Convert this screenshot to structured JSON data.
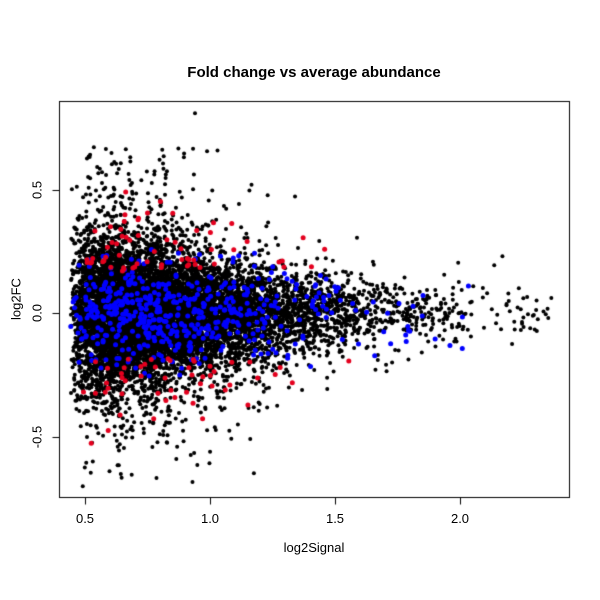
{
  "figure": {
    "background": "#ffffff",
    "box_color": "#000000",
    "text_color": "#000000"
  },
  "chart_data": {
    "type": "scatter",
    "title": "Fold change vs average abundance",
    "xlabel": "log2Signal",
    "ylabel": "log2FC",
    "xlim": [
      0.396,
      2.436
    ],
    "ylim": [
      -0.743,
      0.86
    ],
    "x_ticks": [
      0.5,
      1.0,
      1.5,
      2.0
    ],
    "x_tick_labels": [
      "0.5",
      "1.0",
      "1.5",
      "2.0"
    ],
    "y_ticks": [
      -0.5,
      0.0,
      0.5
    ],
    "y_tick_labels": [
      "-0.5",
      "0.0",
      "0.5"
    ],
    "grid": false,
    "legend": null,
    "seed": 7,
    "series": [
      {
        "name": "non-significant-probes",
        "color": "#000000",
        "n": 9500,
        "radius_px": 2.0,
        "x_dist": {
          "offset": 0.44,
          "scale": 0.27,
          "shape2": 0.6,
          "max": 2.37
        },
        "y_dist": {
          "type": "fan",
          "x0": 0.44,
          "sd0": 0.15,
          "decay": 0.9,
          "sd_min": 0.03,
          "tail_frac": 0.13,
          "tail_mult": 2.1,
          "tail2_frac": 0.018,
          "tail2_mult": 3.1,
          "max_abs": 0.7
        }
      },
      {
        "name": "significant-blue-probes",
        "color": "#0000ff",
        "n": 520,
        "radius_px": 2.5,
        "x_dist": {
          "offset": 0.44,
          "scale": 0.27,
          "shape2": 0.7,
          "max": 2.05
        },
        "y_dist": {
          "type": "normal",
          "sd": 0.105,
          "max_abs": 0.27
        }
      },
      {
        "name": "significant-red-probes",
        "color": "#e4001e",
        "n": 115,
        "radius_px": 2.5,
        "x_dist": {
          "offset": 0.47,
          "scale": 0.24,
          "shape2": 0.8,
          "max": 1.72
        },
        "y_dist": {
          "type": "shifted",
          "base": 0.17,
          "sd": 0.13,
          "max_abs": 0.58,
          "pos_frac": 0.54
        }
      }
    ],
    "highlight_points": [
      {
        "x": 0.94,
        "y": 0.81,
        "color": "#000000",
        "radius_px": 2.0
      },
      {
        "x": 1.03,
        "y": 0.66,
        "color": "#000000",
        "radius_px": 2.0
      }
    ]
  }
}
